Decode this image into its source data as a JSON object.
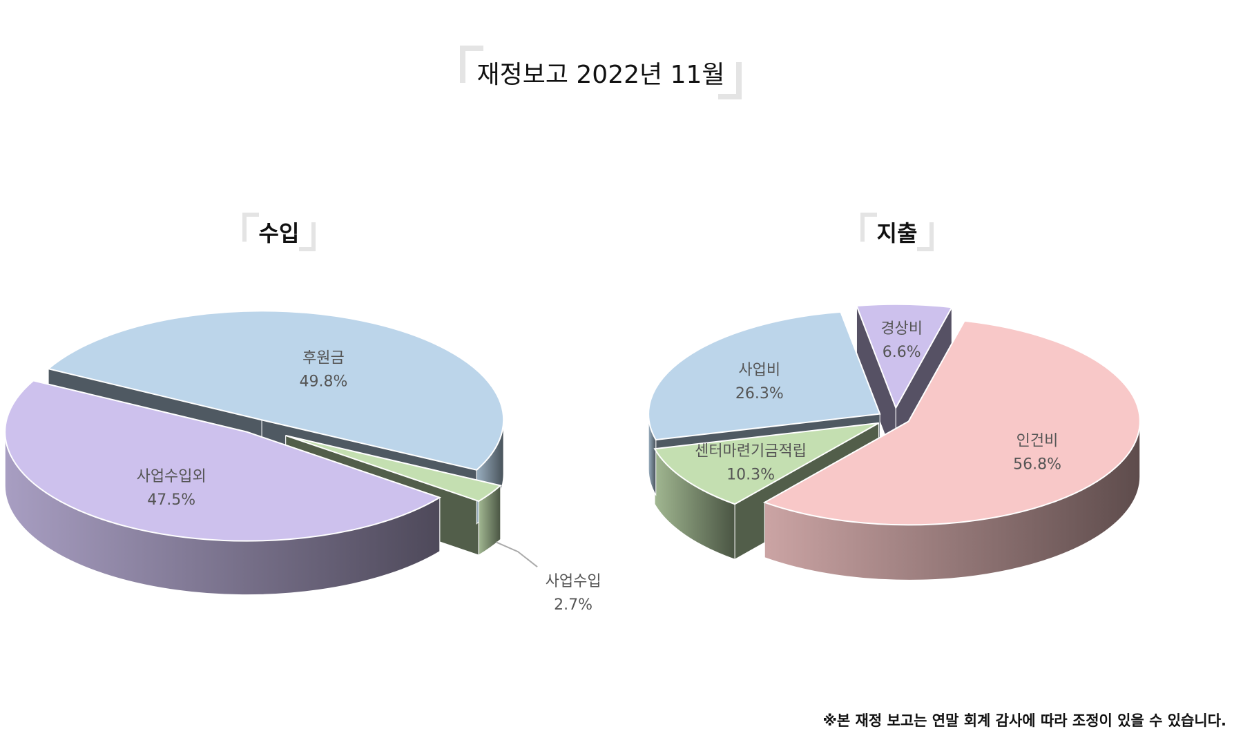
{
  "title": "재정보고 2022년 11월",
  "footnote": "※본 재정 보고는 연말 회계 감사에 따라 조정이 있을 수 있습니다.",
  "chart_data": [
    {
      "type": "pie",
      "title": "수입",
      "style": "3d-exploded",
      "slices": [
        {
          "label": "후원금",
          "value": 49.8,
          "display": "49.8%",
          "color": "#bcd5ea"
        },
        {
          "label": "사업수입",
          "value": 2.7,
          "display": "2.7%",
          "color": "#c4dfb1"
        },
        {
          "label": "사업수입외",
          "value": 47.5,
          "display": "47.5%",
          "color": "#cdc1ed"
        }
      ]
    },
    {
      "type": "pie",
      "title": "지출",
      "style": "3d-exploded",
      "slices": [
        {
          "label": "인건비",
          "value": 56.8,
          "display": "56.8%",
          "color": "#f8c8c8"
        },
        {
          "label": "센터마련기금적립",
          "value": 10.3,
          "display": "10.3%",
          "color": "#c4dfb1"
        },
        {
          "label": "사업비",
          "value": 26.3,
          "display": "26.3%",
          "color": "#bcd5ea"
        },
        {
          "label": "경상비",
          "value": 6.6,
          "display": "6.6%",
          "color": "#cdc1ed"
        }
      ]
    }
  ]
}
